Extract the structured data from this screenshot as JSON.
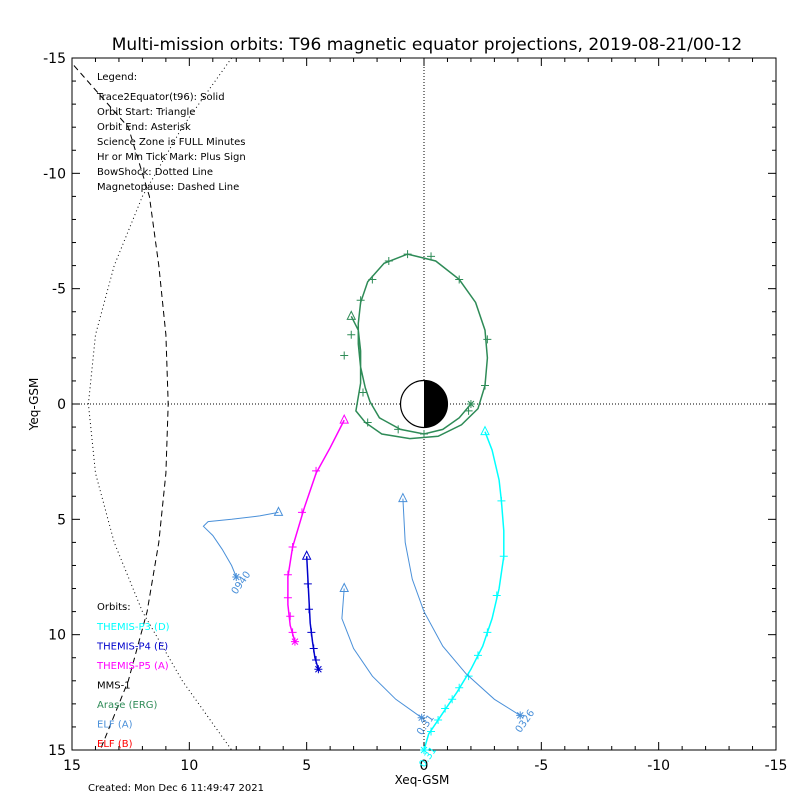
{
  "chart_data": {
    "type": "line",
    "title": "Multi-mission orbits: T96 magnetic equator projections, 2019-08-21/00-12",
    "xlabel": "Xeq-GSM",
    "ylabel": "Yeq-GSM",
    "xlim": [
      15,
      -15
    ],
    "ylim": [
      -15,
      15
    ],
    "x_ticks": [
      "15",
      "10",
      "5",
      "0",
      "-5",
      "-10",
      "-15"
    ],
    "y_ticks": [
      "-15",
      "-10",
      "-5",
      "0",
      "5",
      "10",
      "15"
    ],
    "legend_title": "Legend:",
    "legend_lines": [
      "Trace2Equator(t96): Solid",
      "Orbit Start: Triangle",
      "Orbit End: Asterisk",
      "Science Zone is FULL Minutes",
      "Hr or Min Tick Mark: Plus Sign",
      "BowShock: Dotted Line",
      "Magnetopause: Dashed Line"
    ],
    "orbits_title": "Orbits:",
    "orbits_legend": [
      {
        "name": "THEMIS-P3 (D)",
        "color": "#00ffff"
      },
      {
        "name": "THEMIS-P4 (E)",
        "color": "#0000cc"
      },
      {
        "name": "THEMIS-P5 (A)",
        "color": "#ff00ff"
      },
      {
        "name": "MMS-1",
        "color": "#000000"
      },
      {
        "name": "Arase (ERG)",
        "color": "#2e8b57"
      },
      {
        "name": "ELF (A)",
        "color": "#4a90d9"
      },
      {
        "name": "ELF (B)",
        "color": "#ff0000"
      }
    ],
    "created": "Created: Mon Dec  6 11:49:47 2021",
    "series": [
      {
        "name": "THEMIS-P3 (D)",
        "color": "#00ffff",
        "points": [
          [
            -2.6,
            1.2
          ],
          [
            -2.9,
            2.0
          ],
          [
            -3.2,
            3.3
          ],
          [
            -3.3,
            4.2
          ],
          [
            -3.4,
            5.5
          ],
          [
            -3.4,
            6.6
          ],
          [
            -3.2,
            8.0
          ],
          [
            -2.9,
            9.3
          ],
          [
            -2.5,
            10.5
          ],
          [
            -2.0,
            11.5
          ],
          [
            -1.4,
            12.5
          ],
          [
            -0.8,
            13.4
          ],
          [
            -0.2,
            14.3
          ],
          [
            0.0,
            15.0
          ]
        ],
        "ticks": [
          [
            -3.3,
            4.2
          ],
          [
            -3.4,
            6.6
          ],
          [
            -3.1,
            8.3
          ],
          [
            -2.7,
            9.9
          ],
          [
            -2.3,
            10.9
          ],
          [
            -1.9,
            11.8
          ],
          [
            -1.5,
            12.3
          ],
          [
            -1.2,
            12.8
          ],
          [
            -0.9,
            13.2
          ],
          [
            -0.6,
            13.7
          ],
          [
            -0.3,
            14.2
          ]
        ],
        "start": [
          -2.6,
          1.2
        ],
        "end": [
          0.0,
          15.0
        ],
        "label": "0.31"
      },
      {
        "name": "THEMIS-P4 (E)",
        "color": "#0000cc",
        "points": [
          [
            5.0,
            6.6
          ],
          [
            4.95,
            7.5
          ],
          [
            4.9,
            8.5
          ],
          [
            4.85,
            9.5
          ],
          [
            4.75,
            10.3
          ],
          [
            4.65,
            11.0
          ],
          [
            4.5,
            11.5
          ]
        ],
        "ticks": [
          [
            4.95,
            7.8
          ],
          [
            4.9,
            8.9
          ],
          [
            4.8,
            9.9
          ],
          [
            4.7,
            10.6
          ],
          [
            4.6,
            11.1
          ]
        ],
        "start": [
          5.0,
          6.6
        ],
        "end": [
          4.5,
          11.5
        ]
      },
      {
        "name": "THEMIS-P5 (A)",
        "color": "#ff00ff",
        "points": [
          [
            3.4,
            0.7
          ],
          [
            4.0,
            1.9
          ],
          [
            4.6,
            3.0
          ],
          [
            5.1,
            4.5
          ],
          [
            5.6,
            6.2
          ],
          [
            5.8,
            7.5
          ],
          [
            5.8,
            8.7
          ],
          [
            5.7,
            9.6
          ],
          [
            5.5,
            10.3
          ]
        ],
        "ticks": [
          [
            4.6,
            2.9
          ],
          [
            5.2,
            4.7
          ],
          [
            5.6,
            6.2
          ],
          [
            5.8,
            7.4
          ],
          [
            5.8,
            8.4
          ],
          [
            5.7,
            9.2
          ],
          [
            5.6,
            9.9
          ]
        ],
        "start": [
          3.4,
          0.7
        ],
        "end": [
          5.5,
          10.3
        ]
      },
      {
        "name": "Arase (ERG)",
        "color": "#2e8b57",
        "points": [
          [
            3.1,
            -3.8
          ],
          [
            2.8,
            -3.2
          ],
          [
            2.7,
            -2.3
          ],
          [
            2.7,
            -0.9
          ],
          [
            2.9,
            0.3
          ],
          [
            2.5,
            0.8
          ],
          [
            1.8,
            1.3
          ],
          [
            0.6,
            1.5
          ],
          [
            -0.6,
            1.4
          ],
          [
            -1.6,
            0.9
          ],
          [
            -2.3,
            0.2
          ],
          [
            -2.6,
            -0.8
          ],
          [
            -2.7,
            -2.0
          ],
          [
            -2.6,
            -3.2
          ],
          [
            -2.2,
            -4.4
          ],
          [
            -1.5,
            -5.4
          ],
          [
            -0.5,
            -6.2
          ],
          [
            0.7,
            -6.5
          ],
          [
            1.7,
            -6.1
          ],
          [
            2.4,
            -5.3
          ],
          [
            2.7,
            -4.4
          ],
          [
            2.8,
            -3.5
          ],
          [
            2.8,
            -2.6
          ],
          [
            2.7,
            -1.6
          ],
          [
            2.5,
            -0.7
          ],
          [
            2.3,
            -0.1
          ],
          [
            1.9,
            0.6
          ],
          [
            1.0,
            1.1
          ],
          [
            0.0,
            1.3
          ],
          [
            -0.8,
            1.1
          ],
          [
            -1.5,
            0.6
          ],
          [
            -2.0,
            0.0
          ]
        ],
        "ticks": [
          [
            3.4,
            -2.1
          ],
          [
            3.1,
            -3.0
          ],
          [
            2.7,
            -4.5
          ],
          [
            2.2,
            -5.4
          ],
          [
            1.5,
            -6.2
          ],
          [
            0.7,
            -6.5
          ],
          [
            -0.3,
            -6.4
          ],
          [
            -1.5,
            -5.4
          ],
          [
            -2.7,
            -2.8
          ],
          [
            -2.6,
            -0.8
          ],
          [
            -1.9,
            0.3
          ],
          [
            0.0,
            1.3
          ],
          [
            1.1,
            1.1
          ],
          [
            2.4,
            0.8
          ],
          [
            2.6,
            -0.5
          ]
        ],
        "start": [
          3.1,
          -3.8
        ],
        "end": [
          -2.0,
          0.0
        ]
      },
      {
        "name": "ELF (A)",
        "color": "#4a90d9",
        "points": [
          [
            6.2,
            4.7
          ],
          [
            7.0,
            4.85
          ],
          [
            8.2,
            5.0
          ],
          [
            9.2,
            5.1
          ],
          [
            9.4,
            5.3
          ],
          [
            9.0,
            5.7
          ],
          [
            8.6,
            6.3
          ],
          [
            8.2,
            7.0
          ],
          [
            8.0,
            7.5
          ]
        ],
        "ticks": [],
        "start": [
          6.2,
          4.7
        ],
        "end": [
          8.0,
          7.5
        ],
        "label": "0940"
      },
      {
        "name": "ELF (A)",
        "color": "#4a90d9",
        "points": [
          [
            0.9,
            4.1
          ],
          [
            0.8,
            6.0
          ],
          [
            0.5,
            7.6
          ],
          [
            0.0,
            9.0
          ],
          [
            -0.8,
            10.5
          ],
          [
            -1.8,
            11.7
          ],
          [
            -3.0,
            12.8
          ],
          [
            -4.1,
            13.5
          ]
        ],
        "ticks": [],
        "start": [
          0.9,
          4.1
        ],
        "end": [
          -4.1,
          13.5
        ],
        "label": "0326"
      },
      {
        "name": "ELF (A)",
        "color": "#4a90d9",
        "points": [
          [
            3.4,
            8.0
          ],
          [
            3.5,
            9.3
          ],
          [
            3.0,
            10.6
          ],
          [
            2.2,
            11.8
          ],
          [
            1.2,
            12.8
          ],
          [
            0.1,
            13.6
          ]
        ],
        "ticks": [],
        "start": [
          3.4,
          8.0
        ],
        "end": [
          0.1,
          13.6
        ],
        "label": "0.31"
      }
    ],
    "magnetopause": [
      [
        15.2,
        -15.0
      ],
      [
        12.6,
        -12.0
      ],
      [
        11.7,
        -9.0
      ],
      [
        11.3,
        -6.0
      ],
      [
        11.0,
        -3.0
      ],
      [
        10.9,
        0.0
      ],
      [
        11.0,
        3.0
      ],
      [
        11.3,
        6.0
      ],
      [
        11.8,
        9.0
      ],
      [
        12.6,
        12.0
      ],
      [
        13.8,
        15.0
      ]
    ],
    "bowshock": [
      [
        8.2,
        -15.0
      ],
      [
        10.3,
        -12.0
      ],
      [
        12.0,
        -9.0
      ],
      [
        13.2,
        -6.0
      ],
      [
        14.0,
        -3.0
      ],
      [
        14.3,
        0.0
      ],
      [
        14.0,
        3.0
      ],
      [
        13.2,
        6.0
      ],
      [
        12.0,
        9.0
      ],
      [
        10.3,
        12.0
      ],
      [
        8.2,
        15.0
      ]
    ],
    "earth_radius": 1.0
  }
}
